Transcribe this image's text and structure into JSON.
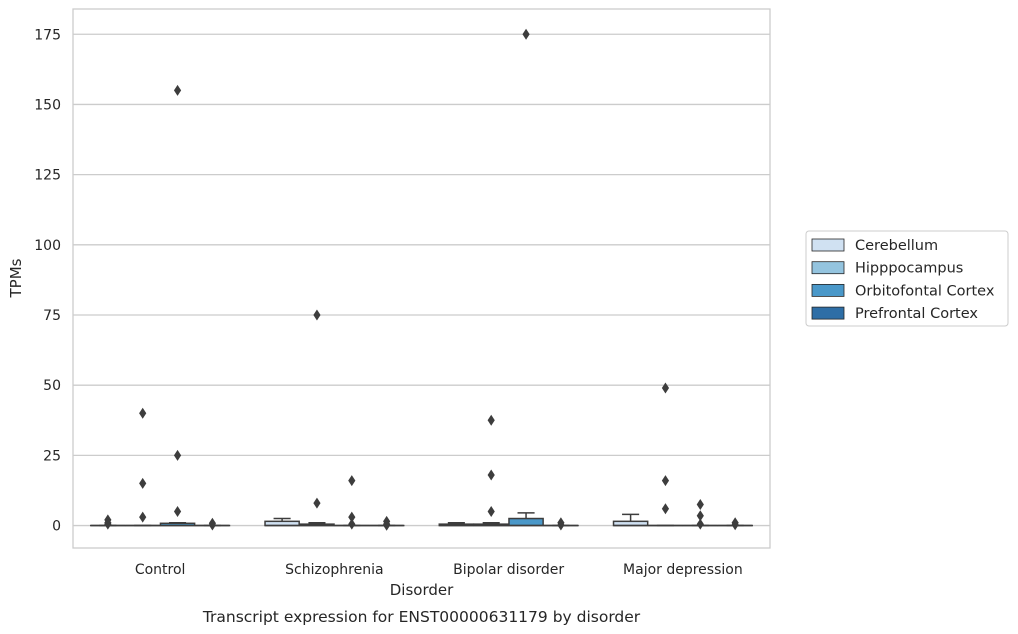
{
  "chart_data": {
    "type": "box",
    "xlabel": "Disorder",
    "ylabel": "TPMs",
    "caption": "Transcript expression for ENST00000631179 by disorder",
    "ylim": [
      -8,
      184
    ],
    "yticks": [
      0,
      25,
      50,
      75,
      100,
      125,
      150,
      175
    ],
    "grid": "horizontal",
    "legend_position": "right",
    "categories": [
      "Control",
      "Schizophrenia",
      "Bipolar disorder",
      "Major depression"
    ],
    "series": [
      {
        "name": "Cerebellum",
        "color": "#d0e1f2",
        "boxes": [
          {
            "category": "Control",
            "q1": 0,
            "median": 0,
            "q3": 0,
            "whisker_low": 0,
            "whisker_high": 0,
            "outliers": [
              2,
              1,
              0.5
            ]
          },
          {
            "category": "Schizophrenia",
            "q1": 0,
            "median": 0,
            "q3": 1.5,
            "whisker_low": 0,
            "whisker_high": 2.5,
            "outliers": []
          },
          {
            "category": "Bipolar disorder",
            "q1": 0,
            "median": 0,
            "q3": 0.5,
            "whisker_low": 0,
            "whisker_high": 1,
            "outliers": []
          },
          {
            "category": "Major depression",
            "q1": 0,
            "median": 0,
            "q3": 1.5,
            "whisker_low": 0,
            "whisker_high": 4,
            "outliers": []
          }
        ]
      },
      {
        "name": "Hipppocampus",
        "color": "#94c4df",
        "boxes": [
          {
            "category": "Control",
            "q1": 0,
            "median": 0,
            "q3": 0,
            "whisker_low": 0,
            "whisker_high": 0,
            "outliers": [
              40,
              15,
              3
            ]
          },
          {
            "category": "Schizophrenia",
            "q1": 0,
            "median": 0,
            "q3": 0.5,
            "whisker_low": 0,
            "whisker_high": 1,
            "outliers": [
              75,
              8
            ]
          },
          {
            "category": "Bipolar disorder",
            "q1": 0,
            "median": 0,
            "q3": 0.5,
            "whisker_low": 0,
            "whisker_high": 1,
            "outliers": [
              37.5,
              18,
              5
            ]
          },
          {
            "category": "Major depression",
            "q1": 0,
            "median": 0,
            "q3": 0,
            "whisker_low": 0,
            "whisker_high": 0,
            "outliers": [
              49,
              16,
              6
            ]
          }
        ]
      },
      {
        "name": "Orbitofontal Cortex",
        "color": "#4a98c9",
        "boxes": [
          {
            "category": "Control",
            "q1": 0,
            "median": 0,
            "q3": 0.8,
            "whisker_low": 0,
            "whisker_high": 1,
            "outliers": [
              155,
              25,
              5
            ]
          },
          {
            "category": "Schizophrenia",
            "q1": 0,
            "median": 0,
            "q3": 0,
            "whisker_low": 0,
            "whisker_high": 0,
            "outliers": [
              16,
              3,
              0.5
            ]
          },
          {
            "category": "Bipolar disorder",
            "q1": 0,
            "median": 0,
            "q3": 2.5,
            "whisker_low": 0,
            "whisker_high": 4.5,
            "outliers": [
              175
            ]
          },
          {
            "category": "Major depression",
            "q1": 0,
            "median": 0,
            "q3": 0,
            "whisker_low": 0,
            "whisker_high": 0,
            "outliers": [
              7.5,
              3.5,
              0.5
            ]
          }
        ]
      },
      {
        "name": "Prefrontal Cortex",
        "color": "#2e6ea6",
        "boxes": [
          {
            "category": "Control",
            "q1": 0,
            "median": 0,
            "q3": 0,
            "whisker_low": 0,
            "whisker_high": 0,
            "outliers": [
              0.8,
              0.2
            ]
          },
          {
            "category": "Schizophrenia",
            "q1": 0,
            "median": 0,
            "q3": 0,
            "whisker_low": 0,
            "whisker_high": 0,
            "outliers": [
              1.5,
              0.5,
              0.1
            ]
          },
          {
            "category": "Bipolar disorder",
            "q1": 0,
            "median": 0,
            "q3": 0,
            "whisker_low": 0,
            "whisker_high": 0,
            "outliers": [
              1,
              0.2
            ]
          },
          {
            "category": "Major depression",
            "q1": 0,
            "median": 0,
            "q3": 0,
            "whisker_low": 0,
            "whisker_high": 0,
            "outliers": [
              1,
              0.3
            ]
          }
        ]
      }
    ]
  }
}
